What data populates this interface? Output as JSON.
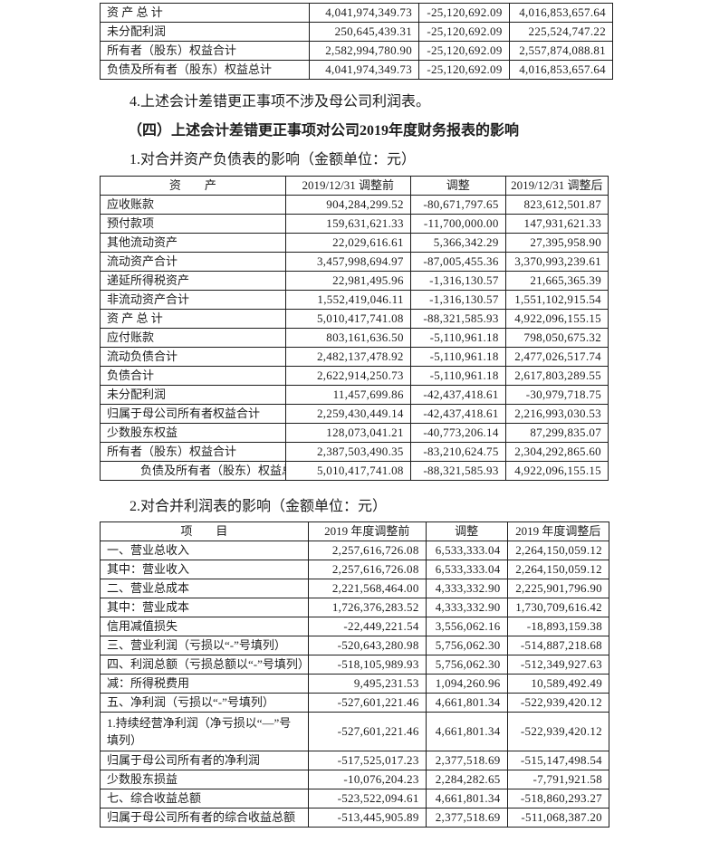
{
  "page": {
    "note_4": "4.上述会计差错更正事项不涉及母公司利润表。",
    "section_heading": "（四）上述会计差错更正事项对公司2019年度财务报表的影响",
    "subheading_balance": "1.对合并资产负债表的影响（金额单位：元）",
    "subheading_income": "2.对合并利润表的影响（金额单位：元）"
  },
  "top_table": {
    "rows": [
      {
        "label": "资 产 总 计",
        "before": "4,041,974,349.73",
        "adj": "-25,120,692.09",
        "after": "4,016,853,657.64"
      },
      {
        "label": "未分配利润",
        "before": "250,645,439.31",
        "adj": "-25,120,692.09",
        "after": "225,524,747.22"
      },
      {
        "label": "所有者（股东）权益合计",
        "before": "2,582,994,780.90",
        "adj": "-25,120,692.09",
        "after": "2,557,874,088.81"
      },
      {
        "label": "负债及所有者（股东）权益总计",
        "before": "4,041,974,349.73",
        "adj": "-25,120,692.09",
        "after": "4,016,853,657.64"
      }
    ]
  },
  "balance_table": {
    "headers": [
      "资　　产",
      "2019/12/31 调整前",
      "调整",
      "2019/12/31 调整后"
    ],
    "rows": [
      {
        "label": "应收账款",
        "before": "904,284,299.52",
        "adj": "-80,671,797.65",
        "after": "823,612,501.87"
      },
      {
        "label": "预付款项",
        "before": "159,631,621.33",
        "adj": "-11,700,000.00",
        "after": "147,931,621.33"
      },
      {
        "label": "其他流动资产",
        "before": "22,029,616.61",
        "adj": "5,366,342.29",
        "after": "27,395,958.90"
      },
      {
        "label": "流动资产合计",
        "before": "3,457,998,694.97",
        "adj": "-87,005,455.36",
        "after": "3,370,993,239.61"
      },
      {
        "label": "递延所得税资产",
        "before": "22,981,495.96",
        "adj": "-1,316,130.57",
        "after": "21,665,365.39"
      },
      {
        "label": "非流动资产合计",
        "before": "1,552,419,046.11",
        "adj": "-1,316,130.57",
        "after": "1,551,102,915.54"
      },
      {
        "label": "资 产 总 计",
        "before": "5,010,417,741.08",
        "adj": "-88,321,585.93",
        "after": "4,922,096,155.15"
      },
      {
        "label": "应付账款",
        "before": "803,161,636.50",
        "adj": "-5,110,961.18",
        "after": "798,050,675.32"
      },
      {
        "label": "流动负债合计",
        "before": "2,482,137,478.92",
        "adj": "-5,110,961.18",
        "after": "2,477,026,517.74"
      },
      {
        "label": "负债合计",
        "before": "2,622,914,250.73",
        "adj": "-5,110,961.18",
        "after": "2,617,803,289.55"
      },
      {
        "label": "未分配利润",
        "before": "11,457,699.86",
        "adj": "-42,437,418.61",
        "after": "-30,979,718.75"
      },
      {
        "label": "归属于母公司所有者权益合计",
        "before": "2,259,430,449.14",
        "adj": "-42,437,418.61",
        "after": "2,216,993,030.53"
      },
      {
        "label": "少数股东权益",
        "before": "128,073,041.21",
        "adj": "-40,773,206.14",
        "after": "87,299,835.07"
      },
      {
        "label": "所有者（股东）权益合计",
        "before": "2,387,503,490.35",
        "adj": "-83,210,624.75",
        "after": "2,304,292,865.60"
      },
      {
        "label": "负债及所有者（股东）权益总计",
        "indent": true,
        "before": "5,010,417,741.08",
        "adj": "-88,321,585.93",
        "after": "4,922,096,155.15"
      }
    ]
  },
  "income_table": {
    "headers": [
      "项　　目",
      "2019 年度调整前",
      "调整",
      "2019 年度调整后"
    ],
    "rows": [
      {
        "label": "一、营业总收入",
        "before": "2,257,616,726.08",
        "adj": "6,533,333.04",
        "after": "2,264,150,059.12"
      },
      {
        "label": "其中：营业收入",
        "before": "2,257,616,726.08",
        "adj": "6,533,333.04",
        "after": "2,264,150,059.12"
      },
      {
        "label": "二、营业总成本",
        "before": "2,221,568,464.00",
        "adj": "4,333,332.90",
        "after": "2,225,901,796.90"
      },
      {
        "label": "其中：营业成本",
        "before": "1,726,376,283.52",
        "adj": "4,333,332.90",
        "after": "1,730,709,616.42"
      },
      {
        "label": "信用减值损失",
        "before": "-22,449,221.54",
        "adj": "3,556,062.16",
        "after": "-18,893,159.38"
      },
      {
        "label": "三、营业利润（亏损以“-”号填列）",
        "before": "-520,643,280.98",
        "adj": "5,756,062.30",
        "after": "-514,887,218.68"
      },
      {
        "label": "四、利润总额（亏损总额以“-”号填列）",
        "before": "-518,105,989.93",
        "adj": "5,756,062.30",
        "after": "-512,349,927.63"
      },
      {
        "label": "减：所得税费用",
        "before": "9,495,231.53",
        "adj": "1,094,260.96",
        "after": "10,589,492.49"
      },
      {
        "label": "五、净利润（亏损以“-”号填列）",
        "before": "-527,601,221.46",
        "adj": "4,661,801.34",
        "after": "-522,939,420.12"
      },
      {
        "label": "1.持续经营净利润（净亏损以“—”号填列）",
        "tall": true,
        "before": "-527,601,221.46",
        "adj": "4,661,801.34",
        "after": "-522,939,420.12"
      },
      {
        "label": "归属于母公司所有者的净利润",
        "before": "-517,525,017.23",
        "adj": "2,377,518.69",
        "after": "-515,147,498.54"
      },
      {
        "label": "少数股东损益",
        "before": "-10,076,204.23",
        "adj": "2,284,282.65",
        "after": "-7,791,921.58"
      },
      {
        "label": "七、综合收益总额",
        "before": "-523,522,094.61",
        "adj": "4,661,801.34",
        "after": "-518,860,293.27"
      },
      {
        "label": "归属于母公司所有者的综合收益总额",
        "before": "-513,445,905.89",
        "adj": "2,377,518.69",
        "after": "-511,068,387.20"
      }
    ]
  }
}
